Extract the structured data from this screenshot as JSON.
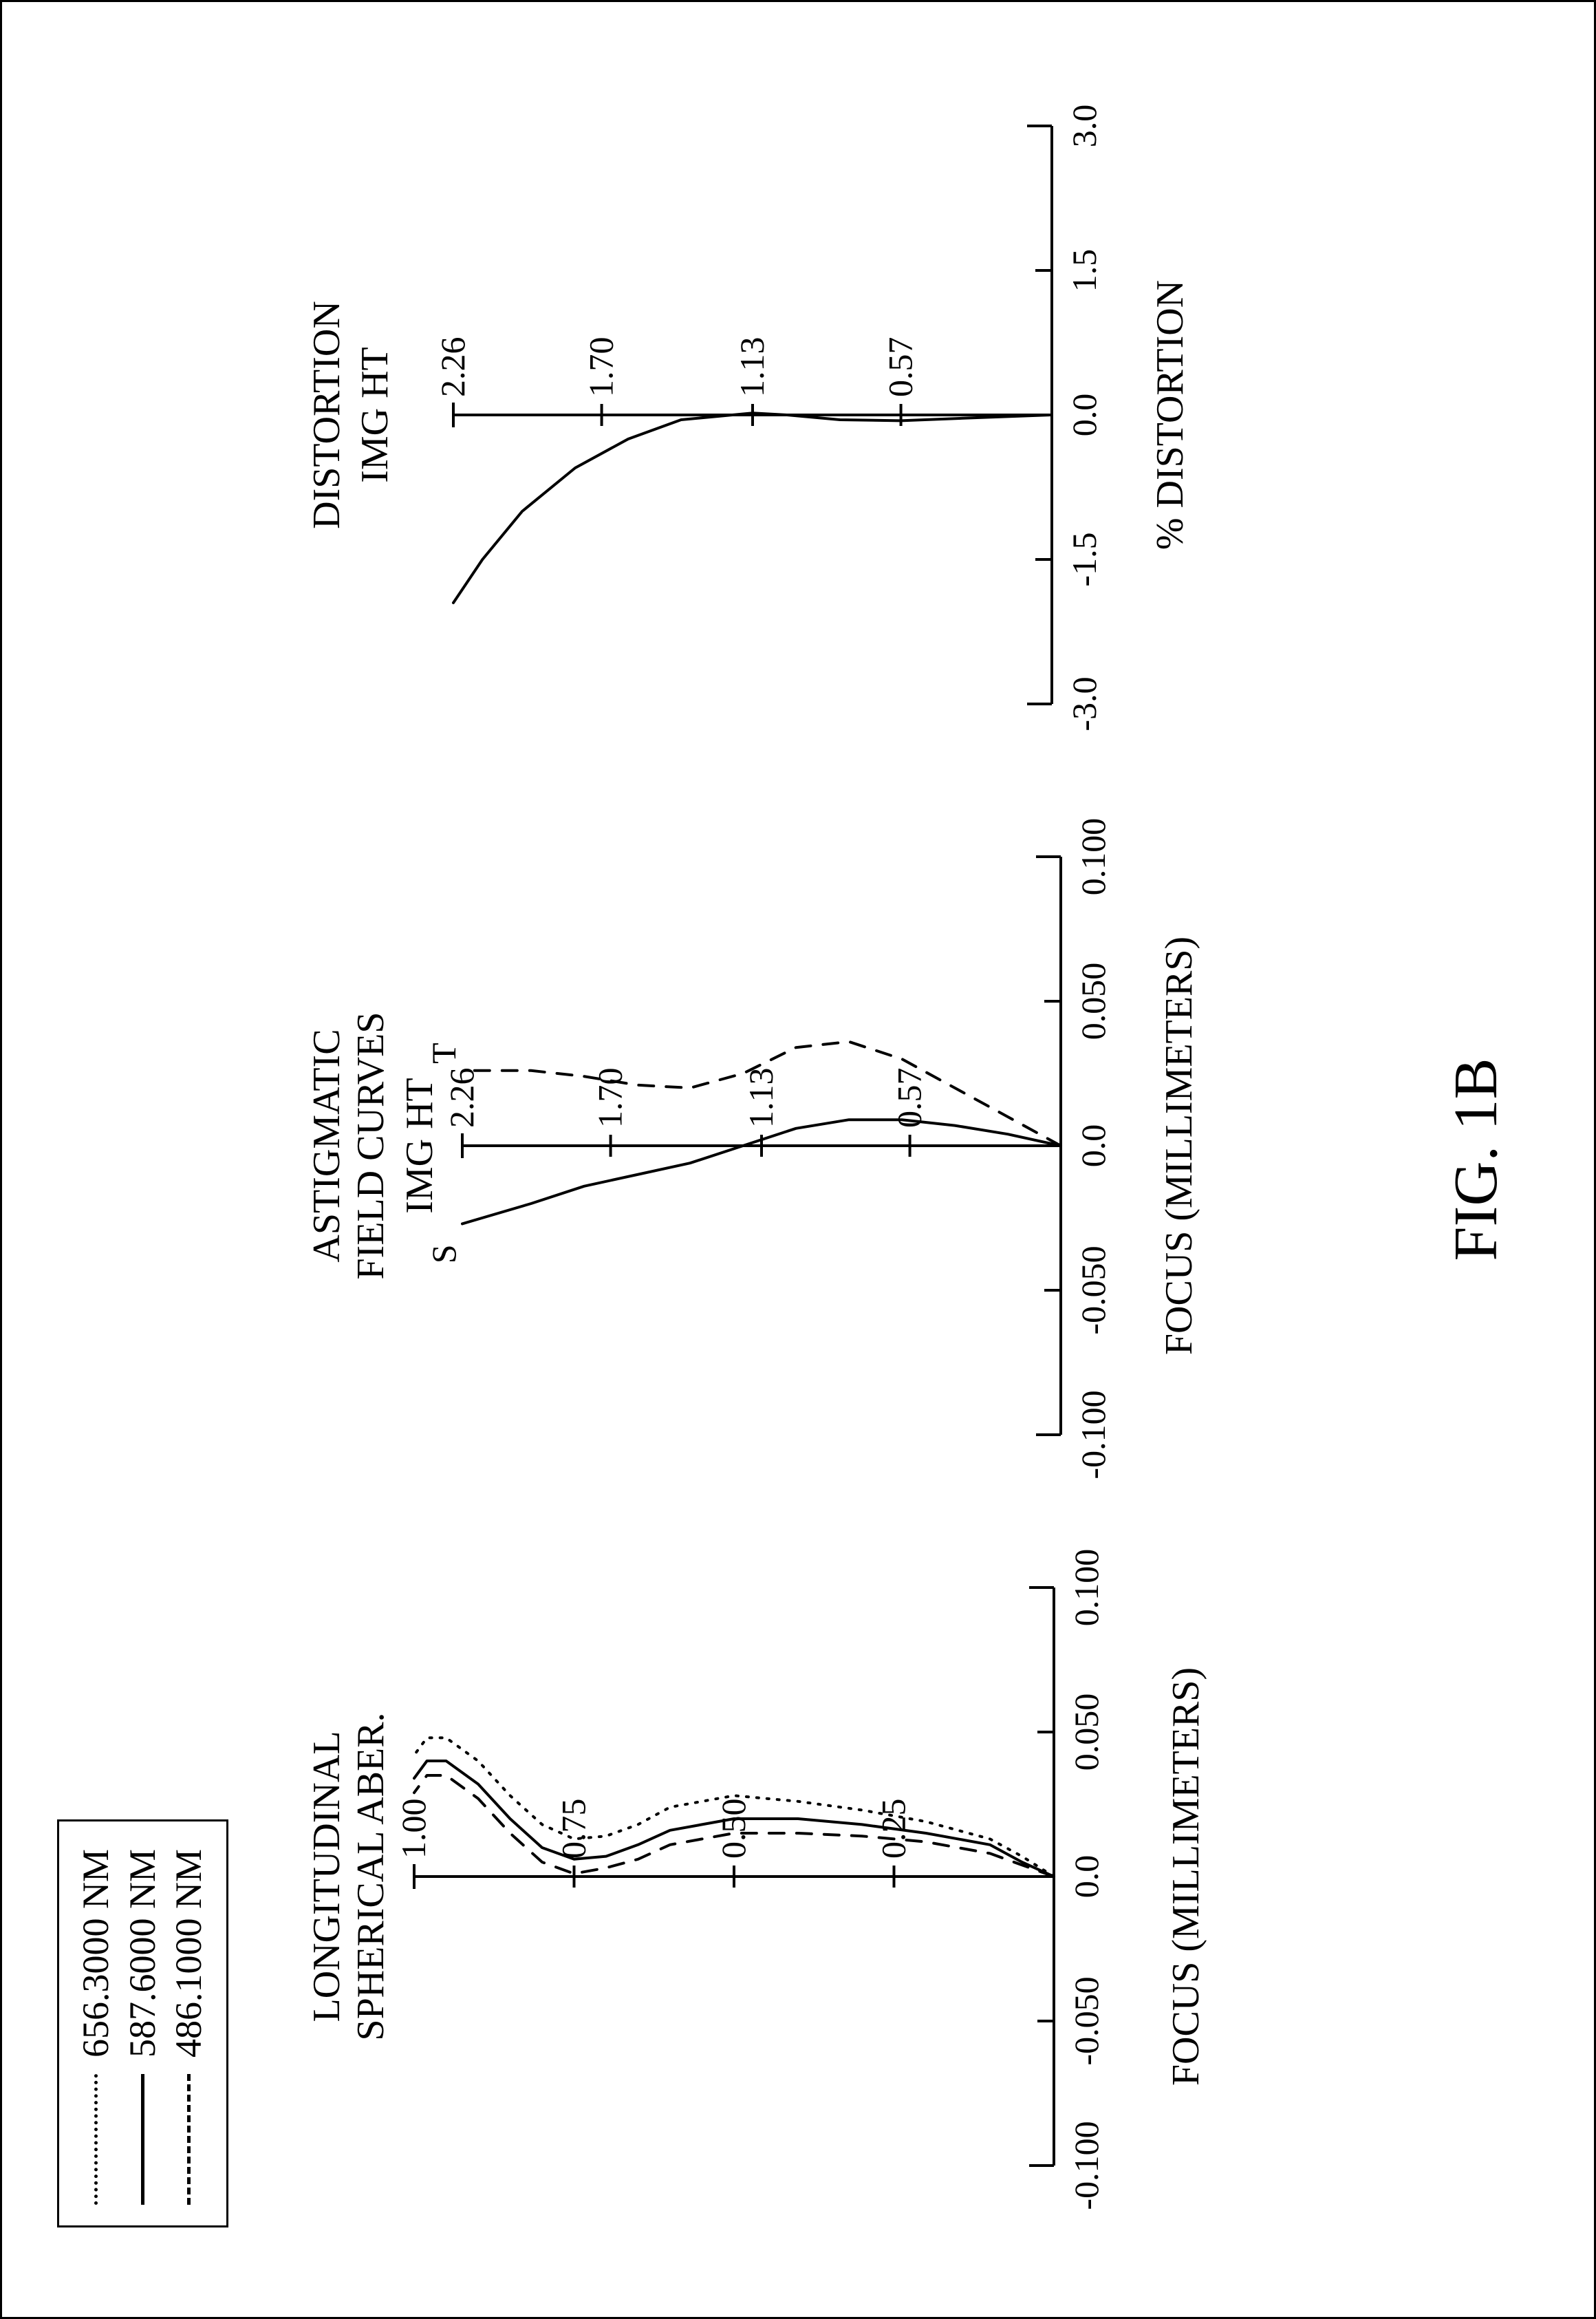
{
  "figure_label": "FIG. 1B",
  "legend": {
    "items": [
      {
        "style": "dotted",
        "label": "656.3000 NM"
      },
      {
        "style": "solid",
        "label": "587.6000 NM"
      },
      {
        "style": "dashed",
        "label": "486.1000 NM"
      }
    ]
  },
  "colors": {
    "stroke": "#000000",
    "background": "#ffffff"
  },
  "panel_spherical": {
    "title_line1": "LONGITUDINAL",
    "title_line2": "SPHERICAL ABER.",
    "xlabel": "FOCUS (MILLIMETERS)",
    "xlim": [
      -0.1,
      0.1
    ],
    "xticks": [
      -0.1,
      -0.05,
      0.0,
      0.05,
      0.1
    ],
    "xtick_labels": [
      "-0.100",
      "-0.050",
      "0.0",
      "0.050",
      "0.100"
    ],
    "ylim": [
      0.0,
      1.0
    ],
    "yticks": [
      0.25,
      0.5,
      0.75,
      1.0
    ],
    "ytick_labels": [
      "0.25",
      "0.50",
      "0.75",
      "1.00"
    ],
    "label_fontsize": 50,
    "line_width": 4,
    "curves": [
      {
        "style": "dotted",
        "points": [
          [
            0.0,
            0.0
          ],
          [
            0.007,
            0.05
          ],
          [
            0.013,
            0.1
          ],
          [
            0.019,
            0.2
          ],
          [
            0.023,
            0.3
          ],
          [
            0.026,
            0.4
          ],
          [
            0.028,
            0.5
          ],
          [
            0.024,
            0.6
          ],
          [
            0.018,
            0.65
          ],
          [
            0.014,
            0.7
          ],
          [
            0.013,
            0.75
          ],
          [
            0.018,
            0.8
          ],
          [
            0.028,
            0.85
          ],
          [
            0.04,
            0.9
          ],
          [
            0.048,
            0.95
          ],
          [
            0.048,
            0.98
          ],
          [
            0.042,
            1.0
          ]
        ]
      },
      {
        "style": "solid",
        "points": [
          [
            0.0,
            0.0
          ],
          [
            0.005,
            0.05
          ],
          [
            0.011,
            0.1
          ],
          [
            0.015,
            0.2
          ],
          [
            0.018,
            0.3
          ],
          [
            0.02,
            0.4
          ],
          [
            0.02,
            0.5
          ],
          [
            0.016,
            0.6
          ],
          [
            0.011,
            0.65
          ],
          [
            0.007,
            0.7
          ],
          [
            0.006,
            0.75
          ],
          [
            0.01,
            0.8
          ],
          [
            0.02,
            0.85
          ],
          [
            0.032,
            0.9
          ],
          [
            0.04,
            0.95
          ],
          [
            0.04,
            0.98
          ],
          [
            0.034,
            1.0
          ]
        ]
      },
      {
        "style": "dashed",
        "points": [
          [
            0.0,
            0.0
          ],
          [
            0.004,
            0.05
          ],
          [
            0.008,
            0.1
          ],
          [
            0.012,
            0.2
          ],
          [
            0.014,
            0.3
          ],
          [
            0.015,
            0.4
          ],
          [
            0.015,
            0.5
          ],
          [
            0.011,
            0.6
          ],
          [
            0.006,
            0.65
          ],
          [
            0.003,
            0.7
          ],
          [
            0.001,
            0.75
          ],
          [
            0.005,
            0.8
          ],
          [
            0.015,
            0.85
          ],
          [
            0.027,
            0.9
          ],
          [
            0.035,
            0.95
          ],
          [
            0.035,
            0.98
          ],
          [
            0.029,
            1.0
          ]
        ]
      }
    ]
  },
  "panel_astigmatic": {
    "title_line1": "ASTIGMATIC",
    "title_line2": "FIELD CURVES",
    "subtitle": "IMG HT",
    "xlabel": "FOCUS (MILLIMETERS)",
    "xlim": [
      -0.1,
      0.1
    ],
    "xticks": [
      -0.1,
      -0.05,
      0.0,
      0.05,
      0.1
    ],
    "xtick_labels": [
      "-0.100",
      "-0.050",
      "0.0",
      "0.050",
      "0.100"
    ],
    "ylim": [
      0.0,
      2.26
    ],
    "yticks": [
      0.57,
      1.13,
      1.7,
      2.26
    ],
    "ytick_labels": [
      "0.57",
      "1.13",
      "1.70",
      "2.26"
    ],
    "label_fontsize": 50,
    "line_width": 4,
    "s_label": "S",
    "t_label": "T",
    "curves": [
      {
        "name": "S",
        "style": "solid",
        "points": [
          [
            0.0,
            0.0
          ],
          [
            0.004,
            0.2
          ],
          [
            0.007,
            0.4
          ],
          [
            0.009,
            0.6
          ],
          [
            0.009,
            0.8
          ],
          [
            0.006,
            1.0
          ],
          [
            0.0,
            1.2
          ],
          [
            -0.006,
            1.4
          ],
          [
            -0.01,
            1.6
          ],
          [
            -0.014,
            1.8
          ],
          [
            -0.02,
            2.0
          ],
          [
            -0.027,
            2.26
          ]
        ]
      },
      {
        "name": "T",
        "style": "dashed",
        "points": [
          [
            0.0,
            0.0
          ],
          [
            0.01,
            0.2
          ],
          [
            0.02,
            0.4
          ],
          [
            0.03,
            0.6
          ],
          [
            0.036,
            0.8
          ],
          [
            0.034,
            1.0
          ],
          [
            0.025,
            1.2
          ],
          [
            0.02,
            1.4
          ],
          [
            0.021,
            1.6
          ],
          [
            0.024,
            1.8
          ],
          [
            0.026,
            2.0
          ],
          [
            0.026,
            2.26
          ]
        ]
      }
    ]
  },
  "panel_distortion": {
    "title_line1": "DISTORTION",
    "subtitle": "IMG HT",
    "xlabel": "% DISTORTION",
    "xlim": [
      -3.0,
      3.0
    ],
    "xticks": [
      -3.0,
      -1.5,
      0.0,
      1.5,
      3.0
    ],
    "xtick_labels": [
      "-3.0",
      "-1.5",
      "0.0",
      "1.5",
      "3.0"
    ],
    "ylim": [
      0.0,
      2.26
    ],
    "yticks": [
      0.57,
      1.13,
      1.7,
      2.26
    ],
    "ytick_labels": [
      "0.57",
      "1.13",
      "1.70",
      "2.26"
    ],
    "label_fontsize": 50,
    "line_width": 4,
    "curves": [
      {
        "style": "solid",
        "points": [
          [
            0.0,
            0.0
          ],
          [
            -0.03,
            0.3
          ],
          [
            -0.06,
            0.57
          ],
          [
            -0.05,
            0.8
          ],
          [
            0.0,
            1.0
          ],
          [
            0.02,
            1.13
          ],
          [
            -0.05,
            1.4
          ],
          [
            -0.25,
            1.6
          ],
          [
            -0.55,
            1.8
          ],
          [
            -1.0,
            2.0
          ],
          [
            -1.5,
            2.15
          ],
          [
            -1.95,
            2.26
          ]
        ]
      }
    ]
  }
}
